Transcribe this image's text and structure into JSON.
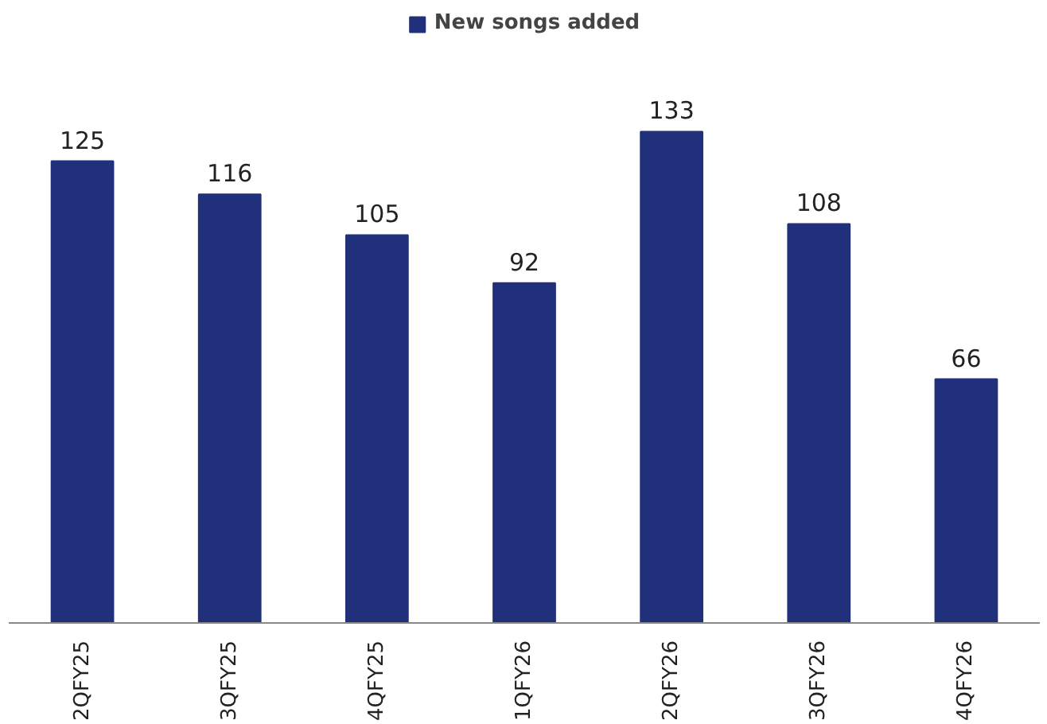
{
  "chart_data": {
    "type": "bar",
    "categories": [
      "2QFY25",
      "3QFY25",
      "4QFY25",
      "1QFY26",
      "2QFY26",
      "3QFY26",
      "4QFY26"
    ],
    "series": [
      {
        "name": "New songs added",
        "color": "#21307a",
        "values": [
          125,
          116,
          105,
          92,
          133,
          108,
          66
        ]
      }
    ],
    "data_labels": true,
    "legend": "top",
    "grid": false,
    "tick_labels": "x"
  }
}
